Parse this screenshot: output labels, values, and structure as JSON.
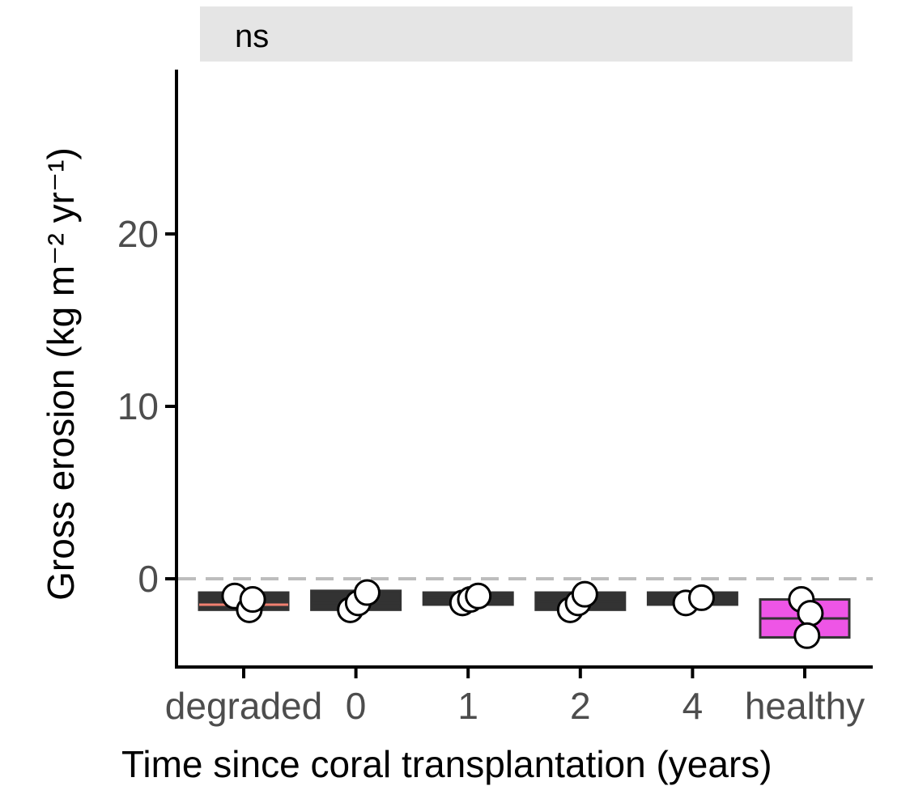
{
  "chart_data": {
    "type": "box",
    "facet_label": "ns",
    "xlabel": "Time since coral transplantation (years)",
    "ylabel": "Gross erosion (kg m⁻² yr⁻¹)",
    "ylim": [
      -5,
      29.5
    ],
    "y_ticks": [
      0,
      10,
      20
    ],
    "categories": [
      "degraded",
      "0",
      "1",
      "2",
      "4",
      "healthy"
    ],
    "reference_line": {
      "y": 0,
      "style": "dashed",
      "color": "#bdbdbd"
    },
    "boxes": [
      {
        "category": "degraded",
        "q1": -1.8,
        "median": -1.5,
        "q3": -0.8,
        "fill": "#333333",
        "median_color": "#f08070"
      },
      {
        "category": "0",
        "q1": -1.8,
        "median": -1.4,
        "q3": -0.7,
        "fill": "#333333",
        "median_color": "#333333"
      },
      {
        "category": "1",
        "q1": -1.5,
        "median": -1.1,
        "q3": -0.8,
        "fill": "#333333",
        "median_color": "#333333"
      },
      {
        "category": "2",
        "q1": -1.8,
        "median": -1.3,
        "q3": -0.8,
        "fill": "#333333",
        "median_color": "#333333"
      },
      {
        "category": "4",
        "q1": -1.5,
        "median": -1.2,
        "q3": -0.8,
        "fill": "#333333",
        "median_color": "#333333"
      },
      {
        "category": "healthy",
        "q1": -3.4,
        "median": -2.3,
        "q3": -1.2,
        "fill": "#ee55e6",
        "median_color": "#333333"
      }
    ],
    "points": [
      {
        "category": "degraded",
        "y": -1.0,
        "jitter": -0.08
      },
      {
        "category": "degraded",
        "y": -1.8,
        "jitter": 0.05
      },
      {
        "category": "degraded",
        "y": -1.2,
        "jitter": 0.08
      },
      {
        "category": "0",
        "y": -1.8,
        "jitter": -0.05
      },
      {
        "category": "0",
        "y": -1.4,
        "jitter": 0.02
      },
      {
        "category": "0",
        "y": -0.8,
        "jitter": 0.1
      },
      {
        "category": "1",
        "y": -1.4,
        "jitter": -0.05
      },
      {
        "category": "1",
        "y": -1.2,
        "jitter": 0.02
      },
      {
        "category": "1",
        "y": -1.0,
        "jitter": 0.09
      },
      {
        "category": "2",
        "y": -1.8,
        "jitter": -0.09
      },
      {
        "category": "2",
        "y": -1.4,
        "jitter": -0.02
      },
      {
        "category": "2",
        "y": -0.9,
        "jitter": 0.04
      },
      {
        "category": "4",
        "y": -1.4,
        "jitter": -0.06
      },
      {
        "category": "4",
        "y": -1.1,
        "jitter": 0.08
      },
      {
        "category": "healthy",
        "y": -1.2,
        "jitter": -0.03
      },
      {
        "category": "healthy",
        "y": -2.0,
        "jitter": 0.05
      },
      {
        "category": "healthy",
        "y": -3.3,
        "jitter": 0.02
      }
    ],
    "grid": false,
    "legend": "none"
  }
}
